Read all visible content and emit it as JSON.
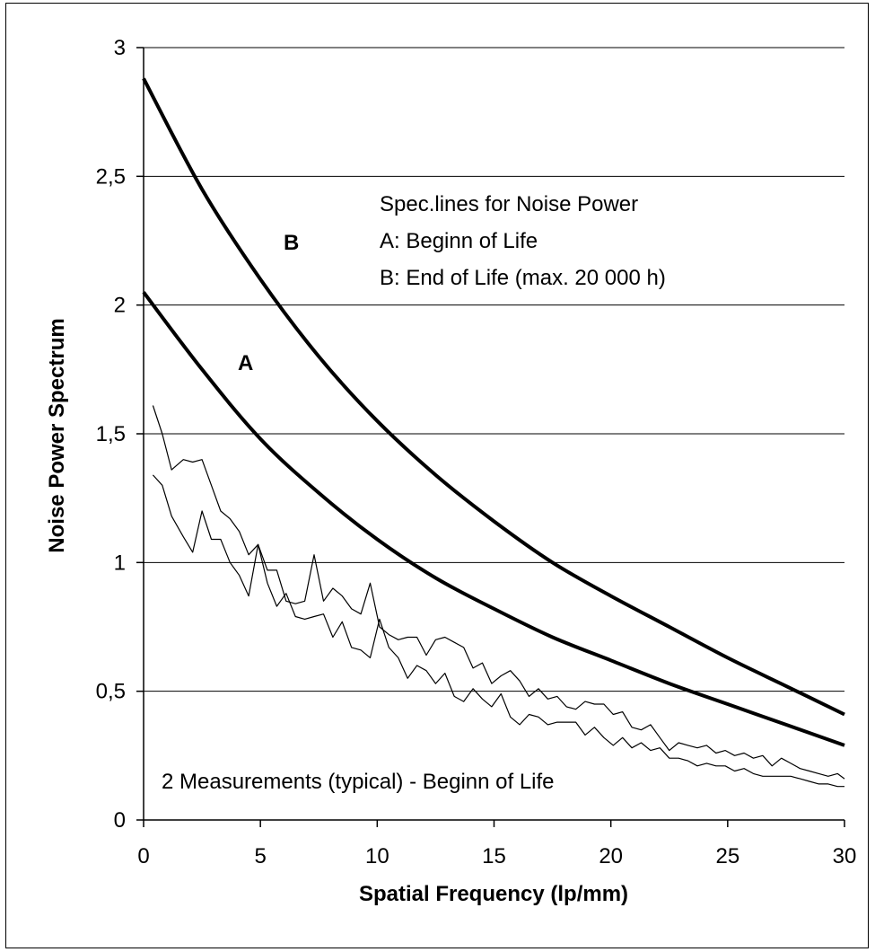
{
  "chart_data": {
    "type": "line",
    "xlabel": "Spatial Frequency (lp/mm)",
    "ylabel": "Noise Power Spectrum",
    "xlim": [
      0,
      30
    ],
    "ylim": [
      0,
      3
    ],
    "x_ticks": [
      "0",
      "5",
      "10",
      "15",
      "20",
      "25",
      "30"
    ],
    "y_ticks": [
      "0",
      "0,5",
      "1",
      "1,5",
      "2",
      "2,5",
      "3"
    ],
    "grid": "horizontal",
    "legend": {
      "title": "Spec.lines for Noise Power",
      "entries": [
        "A:  Beginn of Life",
        "B:  End of Life (max. 20 000 h)"
      ],
      "placement": "top-right"
    },
    "curve_labels": {
      "A": "A",
      "B": "B"
    },
    "measurement_note": "2 Measurements (typical) - Beginn of Life",
    "series": [
      {
        "name": "B",
        "style": "thick",
        "x": [
          0,
          2.5,
          5,
          7.5,
          10,
          12.5,
          15,
          17.5,
          20,
          22.5,
          25,
          27.5,
          30
        ],
        "y": [
          2.88,
          2.45,
          2.1,
          1.8,
          1.55,
          1.34,
          1.16,
          1.0,
          0.87,
          0.75,
          0.63,
          0.52,
          0.41
        ]
      },
      {
        "name": "A",
        "style": "thick",
        "x": [
          0,
          2.5,
          5,
          7.5,
          10,
          12.5,
          15,
          17.5,
          20,
          22.5,
          25,
          27.5,
          30
        ],
        "y": [
          2.05,
          1.75,
          1.48,
          1.27,
          1.09,
          0.94,
          0.82,
          0.71,
          0.62,
          0.53,
          0.45,
          0.37,
          0.29
        ]
      },
      {
        "name": "",
        "style": "thin",
        "x": [
          0.4,
          0.8,
          1.2,
          1.7,
          2.1,
          2.5,
          2.9,
          3.3,
          3.7,
          4.1,
          4.5,
          4.9,
          5.3,
          5.7,
          6.1,
          6.5,
          6.9,
          7.3,
          7.7,
          8.1,
          8.5,
          8.9,
          9.3,
          9.7,
          10.1,
          10.5,
          10.9,
          11.3,
          11.7,
          12.1,
          12.5,
          12.9,
          13.3,
          13.7,
          14.1,
          14.5,
          14.9,
          15.3,
          15.7,
          16.1,
          16.5,
          16.9,
          17.3,
          17.7,
          18.1,
          18.5,
          18.9,
          19.3,
          19.7,
          20.1,
          20.5,
          20.9,
          21.3,
          21.7,
          22.1,
          22.5,
          22.9,
          23.3,
          23.7,
          24.1,
          24.5,
          24.9,
          25.3,
          25.7,
          26.1,
          26.5,
          26.9,
          27.3,
          27.7,
          28.1,
          28.5,
          28.9,
          29.3,
          29.7,
          30
        ],
        "y": [
          1.61,
          1.5,
          1.36,
          1.4,
          1.39,
          1.4,
          1.3,
          1.2,
          1.17,
          1.12,
          1.03,
          1.07,
          0.97,
          0.97,
          0.85,
          0.84,
          0.85,
          1.03,
          0.85,
          0.9,
          0.87,
          0.82,
          0.8,
          0.92,
          0.75,
          0.72,
          0.7,
          0.71,
          0.71,
          0.64,
          0.7,
          0.71,
          0.69,
          0.67,
          0.59,
          0.61,
          0.53,
          0.56,
          0.58,
          0.54,
          0.48,
          0.51,
          0.47,
          0.48,
          0.44,
          0.43,
          0.46,
          0.45,
          0.45,
          0.41,
          0.42,
          0.36,
          0.35,
          0.37,
          0.32,
          0.27,
          0.3,
          0.29,
          0.28,
          0.29,
          0.26,
          0.27,
          0.25,
          0.26,
          0.24,
          0.25,
          0.21,
          0.24,
          0.22,
          0.2,
          0.19,
          0.18,
          0.17,
          0.18,
          0.16
        ]
      },
      {
        "name": "",
        "style": "thin",
        "x": [
          0.4,
          0.8,
          1.2,
          1.7,
          2.1,
          2.5,
          2.9,
          3.3,
          3.7,
          4.1,
          4.5,
          4.9,
          5.3,
          5.7,
          6.1,
          6.5,
          6.9,
          7.3,
          7.7,
          8.1,
          8.5,
          8.9,
          9.3,
          9.7,
          10.1,
          10.5,
          10.9,
          11.3,
          11.7,
          12.1,
          12.5,
          12.9,
          13.3,
          13.7,
          14.1,
          14.5,
          14.9,
          15.3,
          15.7,
          16.1,
          16.5,
          16.9,
          17.3,
          17.7,
          18.1,
          18.5,
          18.9,
          19.3,
          19.7,
          20.1,
          20.5,
          20.9,
          21.3,
          21.7,
          22.1,
          22.5,
          22.9,
          23.3,
          23.7,
          24.1,
          24.5,
          24.9,
          25.3,
          25.7,
          26.1,
          26.5,
          26.9,
          27.3,
          27.7,
          28.1,
          28.5,
          28.9,
          29.3,
          29.7,
          30
        ],
        "y": [
          1.34,
          1.3,
          1.18,
          1.1,
          1.04,
          1.2,
          1.09,
          1.09,
          1.0,
          0.95,
          0.87,
          1.07,
          0.92,
          0.83,
          0.88,
          0.79,
          0.78,
          0.79,
          0.8,
          0.71,
          0.77,
          0.67,
          0.66,
          0.63,
          0.78,
          0.67,
          0.63,
          0.55,
          0.6,
          0.58,
          0.53,
          0.57,
          0.48,
          0.46,
          0.51,
          0.47,
          0.44,
          0.49,
          0.4,
          0.37,
          0.41,
          0.4,
          0.37,
          0.38,
          0.38,
          0.38,
          0.33,
          0.36,
          0.32,
          0.29,
          0.32,
          0.28,
          0.3,
          0.27,
          0.28,
          0.24,
          0.24,
          0.23,
          0.21,
          0.22,
          0.21,
          0.21,
          0.19,
          0.2,
          0.18,
          0.17,
          0.17,
          0.17,
          0.17,
          0.16,
          0.15,
          0.14,
          0.14,
          0.13,
          0.13
        ]
      }
    ]
  }
}
